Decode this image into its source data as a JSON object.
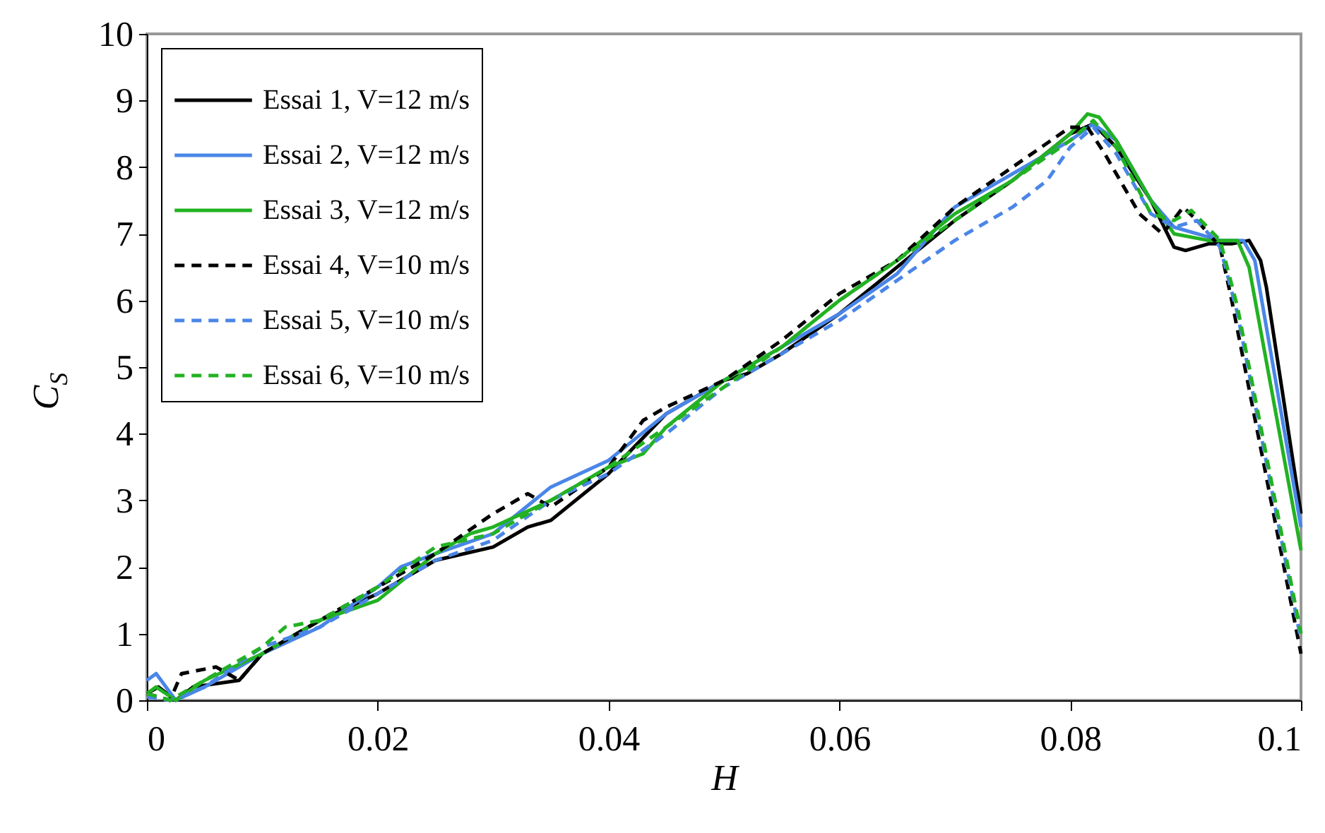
{
  "chart_data": {
    "type": "line",
    "xlabel": "H",
    "ylabel": "C$_{S}$",
    "xlim": [
      0,
      0.1
    ],
    "ylim": [
      0,
      10
    ],
    "xticks": [
      0,
      0.02,
      0.04,
      0.06,
      0.08,
      0.1
    ],
    "yticks": [
      0,
      1,
      2,
      3,
      4,
      5,
      6,
      7,
      8,
      9,
      10
    ],
    "grid": false,
    "legend": "top left",
    "marker": "none",
    "series": [
      {
        "name": "Essai 1, V=12 m/s",
        "color": "#000000",
        "line_style": "solid",
        "x": [
          0,
          0.001,
          0.0025,
          0.004,
          0.008,
          0.01,
          0.015,
          0.02,
          0.025,
          0.03,
          0.033,
          0.035,
          0.04,
          0.045,
          0.05,
          0.052,
          0.055,
          0.06,
          0.065,
          0.07,
          0.075,
          0.08,
          0.082,
          0.084,
          0.087,
          0.089,
          0.09,
          0.092,
          0.094,
          0.0955,
          0.0965,
          0.097,
          0.1
        ],
        "values": [
          0.1,
          0.2,
          0,
          0.2,
          0.3,
          0.7,
          1.2,
          1.6,
          2.1,
          2.3,
          2.6,
          2.7,
          3.4,
          4.3,
          4.8,
          4.9,
          5.2,
          5.8,
          6.5,
          7.2,
          7.8,
          8.5,
          8.65,
          8.3,
          7.5,
          6.8,
          6.75,
          6.85,
          6.85,
          6.9,
          6.6,
          6.2,
          2.8
        ]
      },
      {
        "name": "Essai 2, V=12 m/s",
        "color": "#4a86e8",
        "line_style": "solid",
        "x": [
          0,
          0.0008,
          0.0025,
          0.005,
          0.01,
          0.015,
          0.02,
          0.022,
          0.025,
          0.03,
          0.035,
          0.04,
          0.045,
          0.05,
          0.055,
          0.06,
          0.065,
          0.07,
          0.075,
          0.08,
          0.082,
          0.084,
          0.087,
          0.089,
          0.091,
          0.093,
          0.095,
          0.096,
          0.1
        ],
        "values": [
          0.3,
          0.4,
          0,
          0.2,
          0.7,
          1.1,
          1.7,
          2.0,
          2.2,
          2.5,
          3.2,
          3.6,
          4.3,
          4.8,
          5.3,
          5.8,
          6.4,
          7.4,
          7.9,
          8.4,
          8.65,
          8.4,
          7.5,
          7.1,
          7.0,
          6.9,
          6.9,
          6.6,
          2.6
        ]
      },
      {
        "name": "Essai 3, V=12 m/s",
        "color": "#22b222",
        "line_style": "solid",
        "x": [
          0,
          0.0008,
          0.0025,
          0.005,
          0.01,
          0.015,
          0.02,
          0.025,
          0.028,
          0.03,
          0.035,
          0.04,
          0.043,
          0.045,
          0.05,
          0.055,
          0.06,
          0.065,
          0.07,
          0.075,
          0.08,
          0.0815,
          0.0825,
          0.084,
          0.087,
          0.089,
          0.092,
          0.0945,
          0.0955,
          0.1
        ],
        "values": [
          0.1,
          0.2,
          0,
          0.3,
          0.7,
          1.2,
          1.5,
          2.2,
          2.5,
          2.6,
          3.0,
          3.5,
          3.7,
          4.1,
          4.8,
          5.3,
          6.0,
          6.6,
          7.3,
          7.8,
          8.5,
          8.8,
          8.75,
          8.4,
          7.5,
          7.0,
          6.9,
          6.9,
          6.5,
          2.25
        ]
      },
      {
        "name": "Essai 4, V=10 m/s",
        "color": "#000000",
        "line_style": "dashed",
        "x": [
          0,
          0.002,
          0.003,
          0.006,
          0.008,
          0.01,
          0.015,
          0.02,
          0.025,
          0.03,
          0.033,
          0.035,
          0.04,
          0.043,
          0.045,
          0.05,
          0.055,
          0.06,
          0.065,
          0.07,
          0.075,
          0.08,
          0.0815,
          0.083,
          0.086,
          0.088,
          0.0898,
          0.091,
          0.093,
          0.094,
          0.1
        ],
        "values": [
          0.1,
          0,
          0.4,
          0.5,
          0.3,
          0.7,
          1.2,
          1.7,
          2.2,
          2.8,
          3.1,
          2.9,
          3.5,
          4.2,
          4.4,
          4.8,
          5.4,
          6.1,
          6.6,
          7.4,
          8.0,
          8.6,
          8.6,
          8.2,
          7.3,
          7.0,
          7.4,
          7.2,
          6.8,
          6.0,
          0.7
        ]
      },
      {
        "name": "Essai 5, V=10 m/s",
        "color": "#4a86e8",
        "line_style": "dashed",
        "x": [
          0,
          0.002,
          0.005,
          0.01,
          0.015,
          0.02,
          0.025,
          0.03,
          0.035,
          0.04,
          0.045,
          0.05,
          0.055,
          0.06,
          0.065,
          0.07,
          0.075,
          0.078,
          0.08,
          0.082,
          0.084,
          0.087,
          0.089,
          0.091,
          0.093,
          0.0945,
          0.1
        ],
        "values": [
          0.05,
          0,
          0.2,
          0.8,
          1.1,
          1.6,
          2.1,
          2.4,
          3.0,
          3.4,
          4.0,
          4.7,
          5.2,
          5.7,
          6.3,
          6.9,
          7.4,
          7.8,
          8.3,
          8.6,
          8.2,
          7.3,
          7.1,
          7.2,
          6.8,
          5.8,
          0.9
        ]
      },
      {
        "name": "Essai 6, V=10 m/s",
        "color": "#22b222",
        "line_style": "dashed",
        "x": [
          0,
          0.002,
          0.005,
          0.01,
          0.012,
          0.015,
          0.02,
          0.025,
          0.03,
          0.035,
          0.04,
          0.045,
          0.05,
          0.055,
          0.06,
          0.065,
          0.07,
          0.075,
          0.08,
          0.082,
          0.084,
          0.087,
          0.089,
          0.0905,
          0.093,
          0.0945,
          0.1
        ],
        "values": [
          0.1,
          0,
          0.3,
          0.8,
          1.1,
          1.2,
          1.7,
          2.3,
          2.5,
          3.0,
          3.5,
          4.1,
          4.7,
          5.3,
          6.0,
          6.6,
          7.2,
          7.8,
          8.4,
          8.7,
          8.3,
          7.3,
          7.2,
          7.35,
          6.9,
          5.9,
          1.0
        ]
      }
    ]
  }
}
